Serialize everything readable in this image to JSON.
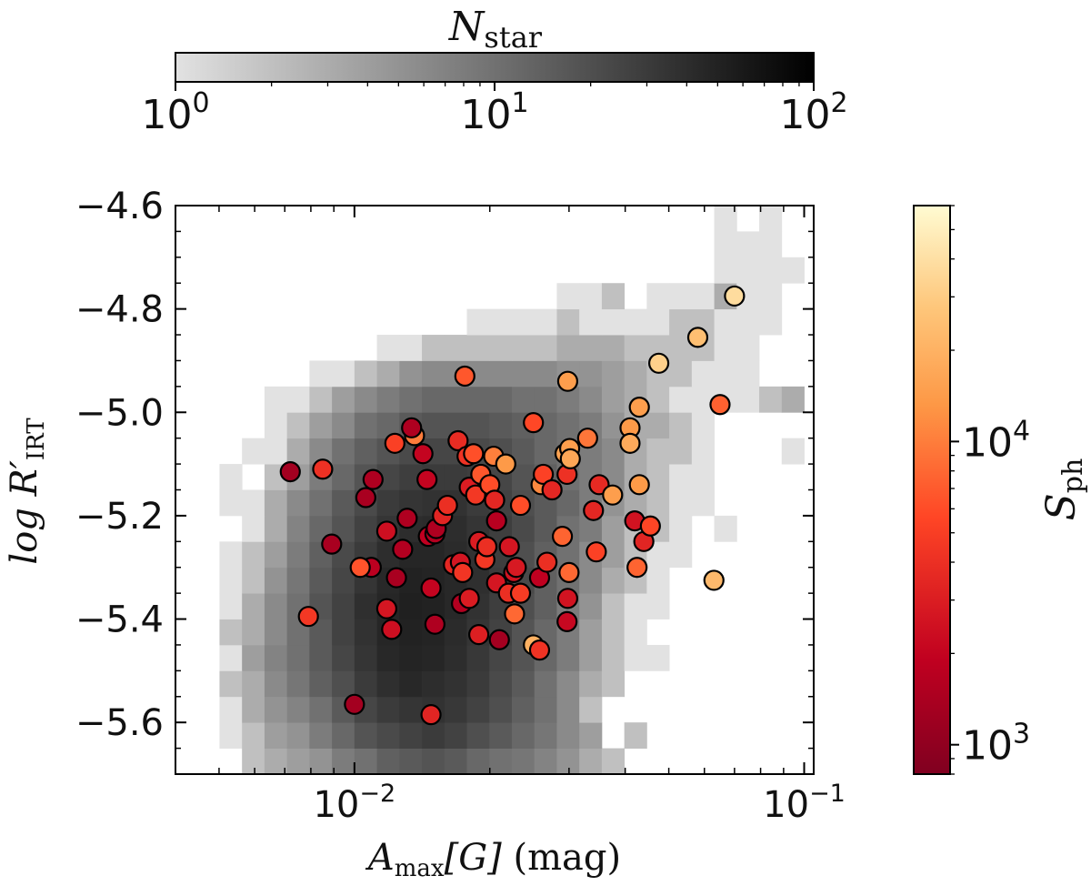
{
  "chart_data": {
    "type": "scatter",
    "description_free": true,
    "xlabel": {
      "main": "A",
      "sub": "max",
      "bracket": "[G]",
      "unit": " (mag)"
    },
    "ylabel": {
      "main": "log R′",
      "sub": "IRT"
    },
    "x_scale": "log",
    "xlim": [
      0.004,
      0.105
    ],
    "ylim": [
      -5.7,
      -4.6
    ],
    "xticks": [
      {
        "value": 0.01,
        "base": "10",
        "exp": "−2"
      },
      {
        "value": 0.1,
        "base": "10",
        "exp": "−1"
      }
    ],
    "yticks": [
      {
        "value": -4.6,
        "label": "−4.6"
      },
      {
        "value": -4.8,
        "label": "−4.8"
      },
      {
        "value": -5.0,
        "label": "−5.0"
      },
      {
        "value": -5.2,
        "label": "−5.2"
      },
      {
        "value": -5.4,
        "label": "−5.4"
      },
      {
        "value": -5.6,
        "label": "−5.6"
      }
    ],
    "histogram_colorbar": {
      "label_main": "N",
      "label_sub": "star",
      "range": [
        1,
        100
      ],
      "ticks": [
        {
          "value": 1,
          "base": "10",
          "exp": "0"
        },
        {
          "value": 10,
          "base": "10",
          "exp": "1"
        },
        {
          "value": 100,
          "base": "10",
          "exp": "2"
        }
      ],
      "colors": [
        "#e2e2e2",
        "#000000"
      ]
    },
    "point_colorbar": {
      "label_main": "S",
      "label_sub": "ph",
      "range": [
        800,
        60000
      ],
      "ticks": [
        {
          "value": 1000,
          "base": "10",
          "exp": "3"
        },
        {
          "value": 10000,
          "base": "10",
          "exp": "4"
        }
      ],
      "colors": [
        "#800020",
        "#c00020",
        "#ff4525",
        "#fd9846",
        "#fec67a",
        "#fffbd2"
      ]
    },
    "histogram": {
      "x_edges_log": [
        -2.38,
        -2.3,
        -2.25,
        -2.2,
        -2.15,
        -2.1,
        -2.05,
        -2.0,
        -1.95,
        -1.9,
        -1.85,
        -1.8,
        -1.75,
        -1.7,
        -1.65,
        -1.6,
        -1.55,
        -1.5,
        -1.45,
        -1.4,
        -1.35,
        -1.3,
        -1.25,
        -1.2,
        -1.15,
        -1.1,
        -1.05,
        -1.0,
        -0.98
      ],
      "y_edges": [
        -5.7,
        -5.65,
        -5.6,
        -5.55,
        -5.5,
        -5.45,
        -5.4,
        -5.35,
        -5.3,
        -5.25,
        -5.2,
        -5.15,
        -5.1,
        -5.05,
        -5.0,
        -4.95,
        -4.9,
        -4.85,
        -4.8,
        -4.75,
        -4.7,
        -4.65,
        -4.6
      ],
      "counts": [
        [
          0,
          0,
          2,
          3,
          4,
          5,
          8,
          10,
          14,
          16,
          18,
          16,
          12,
          10,
          9,
          7,
          5,
          3,
          2,
          0,
          0,
          0,
          0,
          0,
          0,
          0,
          0,
          0
        ],
        [
          0,
          1,
          2,
          4,
          5,
          8,
          12,
          18,
          22,
          26,
          30,
          26,
          20,
          16,
          12,
          9,
          6,
          4,
          0,
          2,
          0,
          0,
          0,
          0,
          0,
          0,
          0,
          0
        ],
        [
          0,
          1,
          3,
          5,
          7,
          10,
          16,
          24,
          30,
          34,
          36,
          32,
          26,
          20,
          14,
          10,
          6,
          2,
          0,
          0,
          0,
          0,
          0,
          0,
          0,
          0,
          0,
          0
        ],
        [
          0,
          2,
          3,
          6,
          9,
          14,
          20,
          30,
          38,
          44,
          40,
          36,
          30,
          22,
          16,
          10,
          6,
          3,
          2,
          0,
          0,
          0,
          0,
          0,
          0,
          0,
          0,
          0
        ],
        [
          0,
          1,
          4,
          7,
          10,
          16,
          24,
          34,
          44,
          48,
          46,
          40,
          32,
          24,
          18,
          12,
          8,
          4,
          2,
          1,
          1,
          0,
          0,
          0,
          0,
          0,
          0,
          0
        ],
        [
          0,
          2,
          3,
          6,
          10,
          16,
          26,
          36,
          46,
          50,
          48,
          42,
          34,
          26,
          18,
          12,
          8,
          4,
          2,
          1,
          0,
          0,
          0,
          0,
          0,
          0,
          0,
          0
        ],
        [
          0,
          1,
          3,
          6,
          10,
          18,
          26,
          38,
          46,
          52,
          50,
          44,
          36,
          28,
          20,
          14,
          8,
          5,
          2,
          1,
          1,
          0,
          0,
          0,
          0,
          0,
          0,
          0
        ],
        [
          0,
          1,
          2,
          5,
          9,
          16,
          24,
          34,
          44,
          50,
          48,
          44,
          38,
          30,
          22,
          14,
          10,
          6,
          3,
          2,
          1,
          0,
          0,
          0,
          0,
          0,
          0,
          0
        ],
        [
          0,
          1,
          2,
          4,
          8,
          14,
          22,
          30,
          40,
          46,
          46,
          42,
          36,
          28,
          20,
          14,
          10,
          6,
          4,
          2,
          1,
          1,
          0,
          0,
          0,
          0,
          0,
          0
        ],
        [
          0,
          0,
          1,
          3,
          7,
          12,
          18,
          26,
          34,
          40,
          42,
          40,
          34,
          28,
          22,
          16,
          10,
          8,
          4,
          2,
          2,
          1,
          0,
          1,
          0,
          0,
          0,
          0
        ],
        [
          0,
          1,
          1,
          3,
          6,
          10,
          16,
          22,
          30,
          34,
          36,
          36,
          30,
          26,
          20,
          16,
          12,
          8,
          5,
          3,
          2,
          1,
          1,
          0,
          0,
          0,
          0,
          0
        ],
        [
          0,
          1,
          0,
          2,
          4,
          8,
          12,
          18,
          24,
          28,
          30,
          30,
          28,
          24,
          18,
          14,
          10,
          8,
          6,
          3,
          2,
          1,
          1,
          0,
          0,
          0,
          0,
          0
        ],
        [
          0,
          0,
          1,
          1,
          3,
          6,
          10,
          14,
          18,
          22,
          24,
          24,
          22,
          20,
          16,
          12,
          10,
          8,
          6,
          3,
          2,
          2,
          1,
          0,
          0,
          0,
          1,
          0
        ],
        [
          0,
          0,
          0,
          1,
          2,
          4,
          6,
          10,
          12,
          16,
          18,
          18,
          18,
          16,
          14,
          12,
          10,
          8,
          5,
          3,
          3,
          2,
          1,
          0,
          0,
          0,
          0,
          0
        ],
        [
          0,
          0,
          0,
          1,
          1,
          2,
          4,
          6,
          8,
          10,
          12,
          12,
          12,
          12,
          10,
          10,
          8,
          6,
          4,
          3,
          2,
          1,
          1,
          1,
          1,
          2,
          3,
          0
        ],
        [
          0,
          0,
          0,
          0,
          0,
          1,
          1,
          2,
          3,
          5,
          6,
          6,
          6,
          6,
          6,
          6,
          5,
          5,
          4,
          3,
          2,
          2,
          1,
          1,
          1,
          0,
          0,
          0
        ],
        [
          0,
          0,
          0,
          0,
          0,
          0,
          0,
          0,
          1,
          1,
          2,
          2,
          2,
          2,
          2,
          2,
          3,
          3,
          3,
          2,
          2,
          2,
          2,
          1,
          1,
          0,
          0,
          0
        ],
        [
          0,
          0,
          0,
          0,
          0,
          0,
          0,
          0,
          0,
          0,
          0,
          0,
          1,
          1,
          1,
          1,
          2,
          1,
          1,
          1,
          1,
          2,
          2,
          1,
          1,
          1,
          0,
          0
        ],
        [
          0,
          0,
          0,
          0,
          0,
          0,
          0,
          0,
          0,
          0,
          0,
          0,
          0,
          0,
          0,
          0,
          1,
          1,
          2,
          0,
          1,
          1,
          1,
          3,
          1,
          1,
          0,
          0
        ],
        [
          0,
          0,
          0,
          0,
          0,
          0,
          0,
          0,
          0,
          0,
          0,
          0,
          0,
          0,
          0,
          0,
          0,
          0,
          0,
          0,
          0,
          0,
          0,
          1,
          1,
          1,
          1,
          0
        ],
        [
          0,
          0,
          0,
          0,
          0,
          0,
          0,
          0,
          0,
          0,
          0,
          0,
          0,
          0,
          0,
          0,
          0,
          0,
          0,
          0,
          0,
          0,
          0,
          1,
          1,
          1,
          0,
          0
        ],
        [
          0,
          0,
          0,
          0,
          0,
          0,
          0,
          0,
          0,
          0,
          0,
          0,
          0,
          0,
          0,
          0,
          0,
          0,
          0,
          0,
          0,
          0,
          0,
          1,
          0,
          1,
          0,
          0
        ]
      ]
    },
    "points": [
      [
        0.0072,
        -5.115,
        1300
      ],
      [
        0.0085,
        -5.11,
        3500
      ],
      [
        0.0089,
        -5.255,
        1400
      ],
      [
        0.0079,
        -5.395,
        3800
      ],
      [
        0.01,
        -5.565,
        1300
      ],
      [
        0.0106,
        -5.165,
        1400
      ],
      [
        0.011,
        -5.13,
        1500
      ],
      [
        0.0109,
        -5.3,
        1800
      ],
      [
        0.0103,
        -5.3,
        5200
      ],
      [
        0.0118,
        -5.23,
        2300
      ],
      [
        0.0123,
        -5.06,
        4200
      ],
      [
        0.0118,
        -5.38,
        2500
      ],
      [
        0.0121,
        -5.42,
        2300
      ],
      [
        0.0124,
        -5.32,
        1400
      ],
      [
        0.0128,
        -5.265,
        1600
      ],
      [
        0.0131,
        -5.205,
        1500
      ],
      [
        0.0136,
        -5.045,
        8000
      ],
      [
        0.0134,
        -5.03,
        1500
      ],
      [
        0.0142,
        -5.08,
        2000
      ],
      [
        0.0146,
        -5.24,
        1900
      ],
      [
        0.0148,
        -5.34,
        2000
      ],
      [
        0.0151,
        -5.41,
        1500
      ],
      [
        0.0151,
        -5.235,
        1600
      ],
      [
        0.0145,
        -5.13,
        2000
      ],
      [
        0.0152,
        -5.225,
        1500
      ],
      [
        0.0148,
        -5.585,
        3000
      ],
      [
        0.0157,
        -5.2,
        3000
      ],
      [
        0.0161,
        -5.18,
        3400
      ],
      [
        0.0166,
        -5.295,
        3100
      ],
      [
        0.0172,
        -5.29,
        2500
      ],
      [
        0.0174,
        -5.31,
        3700
      ],
      [
        0.0173,
        -5.37,
        1600
      ],
      [
        0.017,
        -5.055,
        3300
      ],
      [
        0.0176,
        -4.93,
        5400
      ],
      [
        0.0178,
        -5.085,
        3600
      ],
      [
        0.0184,
        -5.08,
        5000
      ],
      [
        0.018,
        -5.145,
        2700
      ],
      [
        0.0186,
        -5.16,
        3800
      ],
      [
        0.0191,
        -5.12,
        5400
      ],
      [
        0.0189,
        -5.25,
        2700
      ],
      [
        0.018,
        -5.36,
        2700
      ],
      [
        0.0189,
        -5.43,
        2800
      ],
      [
        0.0195,
        -5.285,
        3800
      ],
      [
        0.0197,
        -5.26,
        3400
      ],
      [
        0.02,
        -5.14,
        4900
      ],
      [
        0.0204,
        -5.085,
        8200
      ],
      [
        0.0205,
        -5.17,
        3100
      ],
      [
        0.0207,
        -5.21,
        1700
      ],
      [
        0.0207,
        -5.33,
        2500
      ],
      [
        0.021,
        -5.44,
        1300
      ],
      [
        0.0217,
        -5.1,
        11000
      ],
      [
        0.0221,
        -5.26,
        2500
      ],
      [
        0.022,
        -5.35,
        3400
      ],
      [
        0.0226,
        -5.31,
        2400
      ],
      [
        0.0229,
        -5.3,
        2600
      ],
      [
        0.0234,
        -5.18,
        4900
      ],
      [
        0.0234,
        -5.35,
        4000
      ],
      [
        0.0227,
        -5.39,
        6500
      ],
      [
        0.025,
        -5.02,
        4600
      ],
      [
        0.025,
        -5.45,
        17000
      ],
      [
        0.0258,
        -5.46,
        3600
      ],
      [
        0.0258,
        -5.32,
        1900
      ],
      [
        0.026,
        -5.14,
        9000
      ],
      [
        0.0263,
        -5.12,
        4300
      ],
      [
        0.0268,
        -5.29,
        3400
      ],
      [
        0.0275,
        -5.15,
        3100
      ],
      [
        0.029,
        -5.24,
        6200
      ],
      [
        0.0294,
        -5.08,
        13000
      ],
      [
        0.0297,
        -5.12,
        3500
      ],
      [
        0.0301,
        -5.07,
        12000
      ],
      [
        0.0302,
        -5.09,
        14000
      ],
      [
        0.0298,
        -4.94,
        12000
      ],
      [
        0.03,
        -5.31,
        6500
      ],
      [
        0.0297,
        -5.405,
        2100
      ],
      [
        0.0298,
        -5.36,
        2400
      ],
      [
        0.033,
        -5.05,
        7500
      ],
      [
        0.034,
        -5.19,
        3100
      ],
      [
        0.0345,
        -5.27,
        4300
      ],
      [
        0.035,
        -5.14,
        3200
      ],
      [
        0.0375,
        -5.16,
        12000
      ],
      [
        0.041,
        -5.03,
        11000
      ],
      [
        0.041,
        -5.06,
        15000
      ],
      [
        0.042,
        -5.21,
        2400
      ],
      [
        0.0425,
        -5.3,
        6200
      ],
      [
        0.043,
        -5.14,
        11000
      ],
      [
        0.043,
        -4.99,
        12000
      ],
      [
        0.044,
        -5.25,
        3000
      ],
      [
        0.0455,
        -5.22,
        4500
      ],
      [
        0.0475,
        -4.905,
        30000
      ],
      [
        0.058,
        -4.855,
        22000
      ],
      [
        0.065,
        -4.985,
        6000
      ],
      [
        0.063,
        -5.325,
        20000
      ],
      [
        0.07,
        -4.775,
        36000
      ]
    ]
  }
}
